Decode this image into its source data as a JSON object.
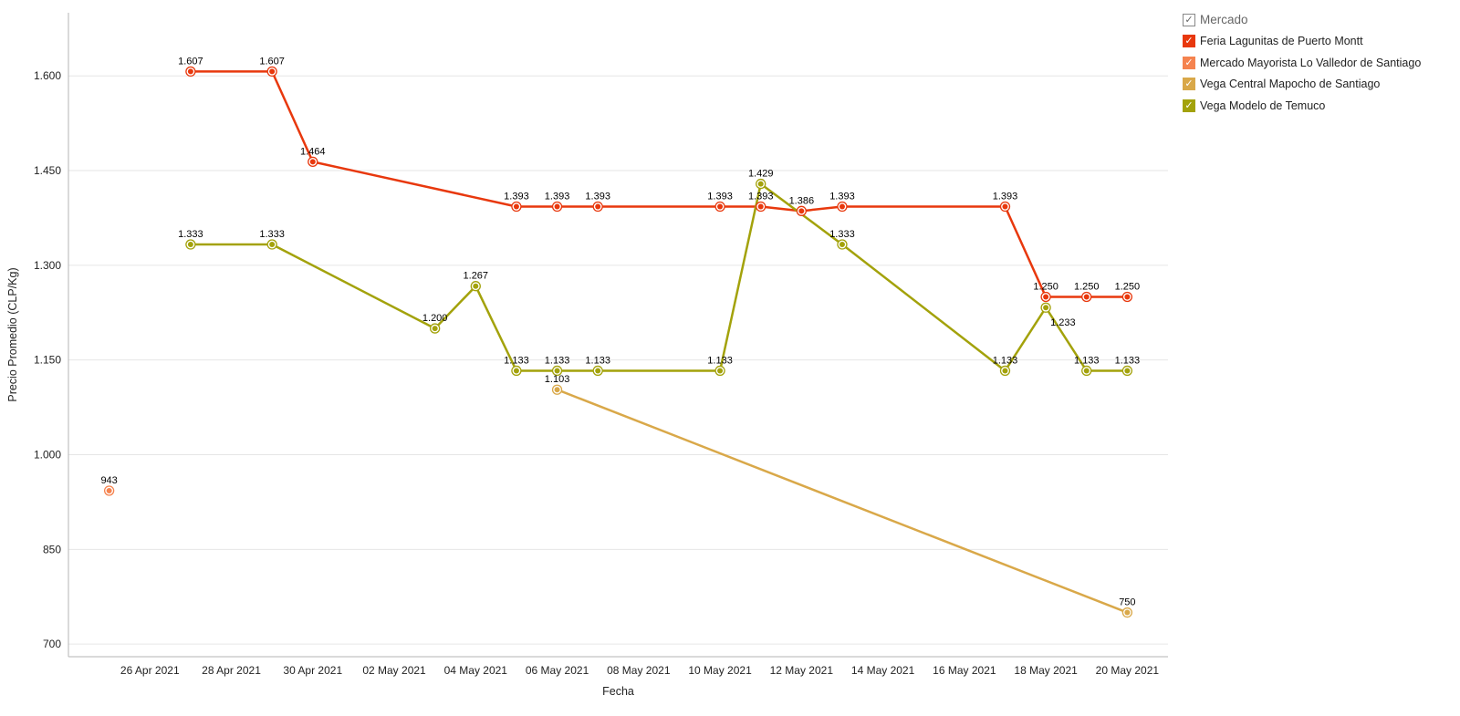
{
  "chart_data": {
    "type": "line",
    "xlabel": "Fecha",
    "ylabel": "Precio Promedio (CLP/Kg)",
    "ylim": [
      680,
      1700
    ],
    "y_ticks": [
      700,
      850,
      1000,
      1150,
      1300,
      1450,
      1600
    ],
    "y_tick_labels": [
      "700",
      "850",
      "1.000",
      "1.150",
      "1.300",
      "1.450",
      "1.600"
    ],
    "x_range": [
      "2021-04-24",
      "2021-05-21"
    ],
    "x_ticks": [
      "2021-04-26",
      "2021-04-28",
      "2021-04-30",
      "2021-05-02",
      "2021-05-04",
      "2021-05-06",
      "2021-05-08",
      "2021-05-10",
      "2021-05-12",
      "2021-05-14",
      "2021-05-16",
      "2021-05-18",
      "2021-05-20"
    ],
    "x_tick_labels": [
      "26 Apr 2021",
      "28 Apr 2021",
      "30 Apr 2021",
      "02 May 2021",
      "04 May 2021",
      "06 May 2021",
      "08 May 2021",
      "10 May 2021",
      "12 May 2021",
      "14 May 2021",
      "16 May 2021",
      "18 May 2021",
      "20 May 2021"
    ],
    "legend": {
      "title": "Mercado",
      "placement": "top-right"
    },
    "series": [
      {
        "name": "Feria Lagunitas de Puerto Montt",
        "color": "#e8380d",
        "points": [
          {
            "x": "2021-04-27",
            "y": 1607,
            "label": "1.607"
          },
          {
            "x": "2021-04-29",
            "y": 1607,
            "label": "1.607"
          },
          {
            "x": "2021-04-30",
            "y": 1464,
            "label": "1.464"
          },
          {
            "x": "2021-05-05",
            "y": 1393,
            "label": "1.393"
          },
          {
            "x": "2021-05-06",
            "y": 1393,
            "label": "1.393"
          },
          {
            "x": "2021-05-07",
            "y": 1393,
            "label": "1.393"
          },
          {
            "x": "2021-05-10",
            "y": 1393,
            "label": "1.393"
          },
          {
            "x": "2021-05-11",
            "y": 1393,
            "label": "1.393"
          },
          {
            "x": "2021-05-12",
            "y": 1386,
            "label": "1.386"
          },
          {
            "x": "2021-05-13",
            "y": 1393,
            "label": "1.393"
          },
          {
            "x": "2021-05-17",
            "y": 1393,
            "label": "1.393"
          },
          {
            "x": "2021-05-18",
            "y": 1250,
            "label": "1.250"
          },
          {
            "x": "2021-05-19",
            "y": 1250,
            "label": "1.250"
          },
          {
            "x": "2021-05-20",
            "y": 1250,
            "label": "1.250"
          }
        ]
      },
      {
        "name": "Mercado Mayorista Lo Valledor de Santiago",
        "color": "#f5834f",
        "points": [
          {
            "x": "2021-04-25",
            "y": 943,
            "label": "943"
          }
        ]
      },
      {
        "name": "Vega Central Mapocho de Santiago",
        "color": "#d9a849",
        "points": [
          {
            "x": "2021-05-06",
            "y": 1103,
            "label": "1.103"
          },
          {
            "x": "2021-05-20",
            "y": 750,
            "label": "750"
          }
        ]
      },
      {
        "name": "Vega Modelo de Temuco",
        "color": "#a3a20b",
        "points": [
          {
            "x": "2021-04-27",
            "y": 1333,
            "label": "1.333"
          },
          {
            "x": "2021-04-29",
            "y": 1333,
            "label": "1.333"
          },
          {
            "x": "2021-05-03",
            "y": 1200,
            "label": "1.200"
          },
          {
            "x": "2021-05-04",
            "y": 1267,
            "label": "1.267"
          },
          {
            "x": "2021-05-05",
            "y": 1133,
            "label": "1.133"
          },
          {
            "x": "2021-05-06",
            "y": 1133,
            "label": "1.133"
          },
          {
            "x": "2021-05-07",
            "y": 1133,
            "label": "1.133"
          },
          {
            "x": "2021-05-10",
            "y": 1133,
            "label": "1.133"
          },
          {
            "x": "2021-05-11",
            "y": 1429,
            "label": "1.429"
          },
          {
            "x": "2021-05-13",
            "y": 1333,
            "label": "1.333"
          },
          {
            "x": "2021-05-17",
            "y": 1133,
            "label": "1.133"
          },
          {
            "x": "2021-05-18",
            "y": 1233,
            "label": "1.233"
          },
          {
            "x": "2021-05-19",
            "y": 1133,
            "label": "1.133"
          },
          {
            "x": "2021-05-20",
            "y": 1133,
            "label": "1.133"
          }
        ]
      }
    ]
  }
}
